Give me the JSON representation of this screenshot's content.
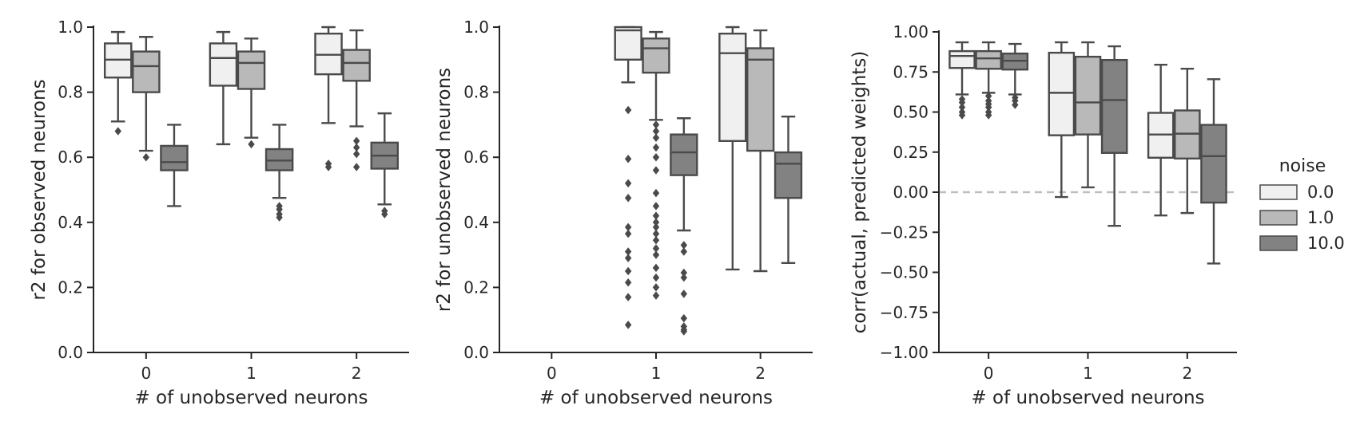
{
  "colors": {
    "noise_0": "#f0f0f0",
    "noise_1": "#b9b9b9",
    "noise_10": "#828282",
    "edge": "#4a4a4a",
    "zero_line": "#bfbfbf"
  },
  "legend": {
    "title": "noise",
    "entries": [
      "0.0",
      "1.0",
      "10.0"
    ]
  },
  "chart_data": [
    {
      "type": "box",
      "xlabel": "# of unobserved neurons",
      "ylabel": "r2 for observed neurons",
      "categories": [
        "0",
        "1",
        "2"
      ],
      "ylim": [
        0.0,
        1.0
      ],
      "yticks": [
        "0.0",
        "0.2",
        "0.4",
        "0.6",
        "0.8",
        "1.0"
      ],
      "grid": false,
      "series": [
        {
          "name": "0.0",
          "boxes": [
            {
              "category": "0",
              "whisker_low": 0.71,
              "q1": 0.845,
              "median": 0.9,
              "q3": 0.95,
              "whisker_high": 0.985,
              "outliers": [
                0.68
              ]
            },
            {
              "category": "1",
              "whisker_low": 0.64,
              "q1": 0.82,
              "median": 0.905,
              "q3": 0.95,
              "whisker_high": 0.985,
              "outliers": []
            },
            {
              "category": "2",
              "whisker_low": 0.705,
              "q1": 0.855,
              "median": 0.915,
              "q3": 0.98,
              "whisker_high": 1.0,
              "outliers": [
                0.58,
                0.57
              ]
            }
          ]
        },
        {
          "name": "1.0",
          "boxes": [
            {
              "category": "0",
              "whisker_low": 0.62,
              "q1": 0.8,
              "median": 0.88,
              "q3": 0.925,
              "whisker_high": 0.97,
              "outliers": [
                0.6
              ]
            },
            {
              "category": "1",
              "whisker_low": 0.66,
              "q1": 0.81,
              "median": 0.89,
              "q3": 0.925,
              "whisker_high": 0.965,
              "outliers": [
                0.64
              ]
            },
            {
              "category": "2",
              "whisker_low": 0.695,
              "q1": 0.835,
              "median": 0.89,
              "q3": 0.93,
              "whisker_high": 0.99,
              "outliers": [
                0.65,
                0.63,
                0.61,
                0.57
              ]
            }
          ]
        },
        {
          "name": "10.0",
          "boxes": [
            {
              "category": "0",
              "whisker_low": 0.45,
              "q1": 0.56,
              "median": 0.585,
              "q3": 0.635,
              "whisker_high": 0.7,
              "outliers": []
            },
            {
              "category": "1",
              "whisker_low": 0.475,
              "q1": 0.56,
              "median": 0.59,
              "q3": 0.625,
              "whisker_high": 0.7,
              "outliers": [
                0.45,
                0.44,
                0.425,
                0.415
              ]
            },
            {
              "category": "2",
              "whisker_low": 0.455,
              "q1": 0.565,
              "median": 0.605,
              "q3": 0.645,
              "whisker_high": 0.735,
              "outliers": [
                0.435,
                0.425
              ]
            }
          ]
        }
      ]
    },
    {
      "type": "box",
      "xlabel": "# of unobserved neurons",
      "ylabel": "r2 for unobserved neurons",
      "categories": [
        "0",
        "1",
        "2"
      ],
      "ylim": [
        0.0,
        1.0
      ],
      "yticks": [
        "0.0",
        "0.2",
        "0.4",
        "0.6",
        "0.8",
        "1.0"
      ],
      "grid": false,
      "series": [
        {
          "name": "0.0",
          "boxes": [
            {
              "category": "1",
              "whisker_low": 0.83,
              "q1": 0.9,
              "median": 0.99,
              "q3": 1.0,
              "whisker_high": 1.0,
              "outliers": [
                0.745,
                0.595,
                0.52,
                0.475,
                0.385,
                0.365,
                0.31,
                0.29,
                0.25,
                0.215,
                0.17,
                0.085
              ]
            },
            {
              "category": "2",
              "whisker_low": 0.255,
              "q1": 0.65,
              "median": 0.92,
              "q3": 0.98,
              "whisker_high": 1.0,
              "outliers": []
            }
          ]
        },
        {
          "name": "1.0",
          "boxes": [
            {
              "category": "1",
              "whisker_low": 0.715,
              "q1": 0.86,
              "median": 0.935,
              "q3": 0.965,
              "whisker_high": 0.985,
              "outliers": [
                0.7,
                0.68,
                0.66,
                0.63,
                0.6,
                0.56,
                0.49,
                0.45,
                0.42,
                0.4,
                0.385,
                0.365,
                0.345,
                0.32,
                0.3,
                0.26,
                0.23,
                0.2,
                0.175
              ]
            },
            {
              "category": "2",
              "whisker_low": 0.25,
              "q1": 0.62,
              "median": 0.9,
              "q3": 0.935,
              "whisker_high": 0.99,
              "outliers": []
            }
          ]
        },
        {
          "name": "10.0",
          "boxes": [
            {
              "category": "1",
              "whisker_low": 0.375,
              "q1": 0.545,
              "median": 0.615,
              "q3": 0.67,
              "whisker_high": 0.72,
              "outliers": [
                0.33,
                0.31,
                0.245,
                0.23,
                0.18,
                0.105,
                0.08,
                0.07,
                0.065
              ]
            },
            {
              "category": "2",
              "whisker_low": 0.275,
              "q1": 0.475,
              "median": 0.58,
              "q3": 0.615,
              "whisker_high": 0.725,
              "outliers": []
            }
          ]
        }
      ]
    },
    {
      "type": "box",
      "xlabel": "# of unobserved neurons",
      "ylabel": "corr(actual, predicted weights)",
      "categories": [
        "0",
        "1",
        "2"
      ],
      "ylim": [
        -1.0,
        1.0
      ],
      "yticks": [
        "−1.00",
        "−0.75",
        "−0.50",
        "−0.25",
        "0.00",
        "0.25",
        "0.50",
        "0.75",
        "1.00"
      ],
      "grid": false,
      "reference_line": 0.0,
      "series": [
        {
          "name": "0.0",
          "boxes": [
            {
              "category": "0",
              "whisker_low": 0.61,
              "q1": 0.775,
              "median": 0.85,
              "q3": 0.88,
              "whisker_high": 0.935,
              "outliers": [
                0.58,
                0.56,
                0.53,
                0.5,
                0.48
              ]
            },
            {
              "category": "1",
              "whisker_low": -0.03,
              "q1": 0.355,
              "median": 0.62,
              "q3": 0.87,
              "whisker_high": 0.935,
              "outliers": []
            },
            {
              "category": "2",
              "whisker_low": -0.145,
              "q1": 0.215,
              "median": 0.36,
              "q3": 0.495,
              "whisker_high": 0.795,
              "outliers": []
            }
          ]
        },
        {
          "name": "1.0",
          "boxes": [
            {
              "category": "0",
              "whisker_low": 0.62,
              "q1": 0.77,
              "median": 0.835,
              "q3": 0.88,
              "whisker_high": 0.935,
              "outliers": [
                0.6,
                0.57,
                0.55,
                0.53,
                0.5,
                0.48
              ]
            },
            {
              "category": "1",
              "whisker_low": 0.03,
              "q1": 0.36,
              "median": 0.56,
              "q3": 0.845,
              "whisker_high": 0.935,
              "outliers": []
            },
            {
              "category": "2",
              "whisker_low": -0.13,
              "q1": 0.21,
              "median": 0.365,
              "q3": 0.51,
              "whisker_high": 0.77,
              "outliers": []
            }
          ]
        },
        {
          "name": "10.0",
          "boxes": [
            {
              "category": "0",
              "whisker_low": 0.61,
              "q1": 0.765,
              "median": 0.82,
              "q3": 0.865,
              "whisker_high": 0.925,
              "outliers": [
                0.59,
                0.57,
                0.545
              ]
            },
            {
              "category": "1",
              "whisker_low": -0.21,
              "q1": 0.245,
              "median": 0.575,
              "q3": 0.825,
              "whisker_high": 0.91,
              "outliers": []
            },
            {
              "category": "2",
              "whisker_low": -0.445,
              "q1": -0.065,
              "median": 0.225,
              "q3": 0.42,
              "whisker_high": 0.705,
              "outliers": []
            }
          ]
        }
      ]
    }
  ]
}
